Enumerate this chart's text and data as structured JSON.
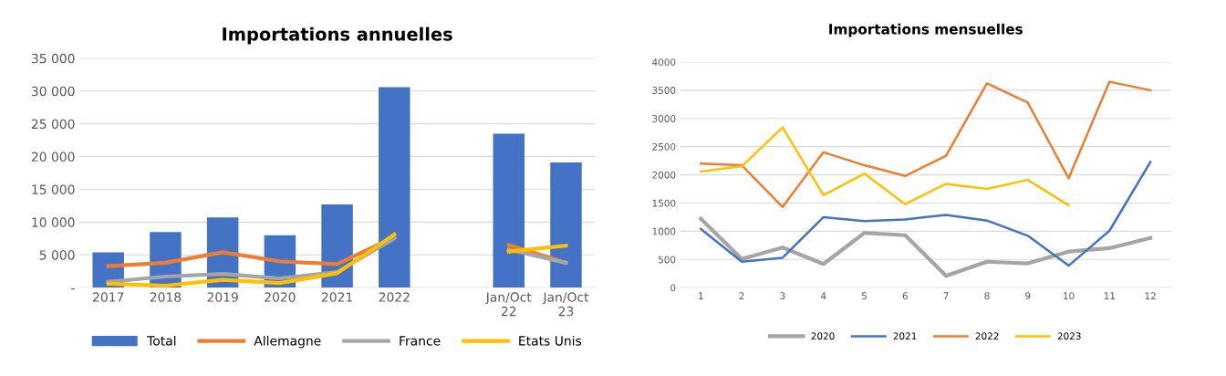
{
  "chart_data": [
    {
      "type": "bar",
      "title": "Importations annuelles",
      "categories": [
        "2017",
        "2018",
        "2019",
        "2020",
        "2021",
        "2022",
        null,
        "Jan/Oct\n22",
        "Jan/Oct\n23"
      ],
      "series": [
        {
          "name": "Total",
          "type": "bar",
          "color": "#4472c4",
          "values": [
            5400,
            8500,
            10700,
            8000,
            12700,
            30600,
            null,
            23500,
            19100
          ]
        },
        {
          "name": "Allemagne",
          "type": "line",
          "color": "#ed7d31",
          "values": [
            3300,
            3800,
            5400,
            4000,
            3600,
            7700,
            null,
            6500,
            3800
          ]
        },
        {
          "name": "France",
          "type": "line",
          "color": "#a5a5a5",
          "values": [
            900,
            1700,
            2100,
            1400,
            2400,
            7500,
            null,
            5800,
            3800
          ]
        },
        {
          "name": "Etats Unis",
          "type": "line",
          "color": "#ffc000",
          "values": [
            600,
            300,
            1200,
            700,
            2200,
            8100,
            null,
            5500,
            6400
          ]
        }
      ],
      "ylim": [
        0,
        35000
      ],
      "yticks": [
        {
          "value": 0,
          "label": "-"
        },
        {
          "value": 5000,
          "label": "5 000"
        },
        {
          "value": 10000,
          "label": "10 000"
        },
        {
          "value": 15000,
          "label": "15 000"
        },
        {
          "value": 20000,
          "label": "20 000"
        },
        {
          "value": 25000,
          "label": "25 000"
        },
        {
          "value": 30000,
          "label": "30 000"
        },
        {
          "value": 35000,
          "label": "35 000"
        }
      ],
      "grid": "y",
      "legend": "bottom",
      "marker": "none",
      "line_style": "solid"
    },
    {
      "type": "line",
      "title": "Importations mensuelles",
      "categories": [
        "1",
        "2",
        "3",
        "4",
        "5",
        "6",
        "7",
        "8",
        "9",
        "10",
        "11",
        "12"
      ],
      "series": [
        {
          "name": "2020",
          "color": "#a5a5a5",
          "values": [
            1220,
            510,
            710,
            420,
            970,
            930,
            210,
            460,
            430,
            640,
            700,
            880
          ]
        },
        {
          "name": "2021",
          "color": "#4472c4",
          "values": [
            1040,
            460,
            530,
            1250,
            1180,
            1210,
            1290,
            1190,
            920,
            390,
            1010,
            2230
          ]
        },
        {
          "name": "2022",
          "color": "#ed7d31",
          "values": [
            2200,
            2170,
            1430,
            2400,
            2170,
            1980,
            2340,
            3620,
            3280,
            1940,
            3650,
            3500
          ]
        },
        {
          "name": "2023",
          "color": "#ffc000",
          "values": [
            2060,
            2150,
            2840,
            1640,
            2020,
            1480,
            1840,
            1750,
            1910,
            1460,
            null,
            null
          ]
        }
      ],
      "ylim": [
        0,
        4000
      ],
      "yticks": [
        0,
        500,
        1000,
        1500,
        2000,
        2500,
        3000,
        3500,
        4000
      ],
      "grid": "y",
      "legend": "bottom",
      "marker": "none",
      "line_style": "solid"
    }
  ]
}
